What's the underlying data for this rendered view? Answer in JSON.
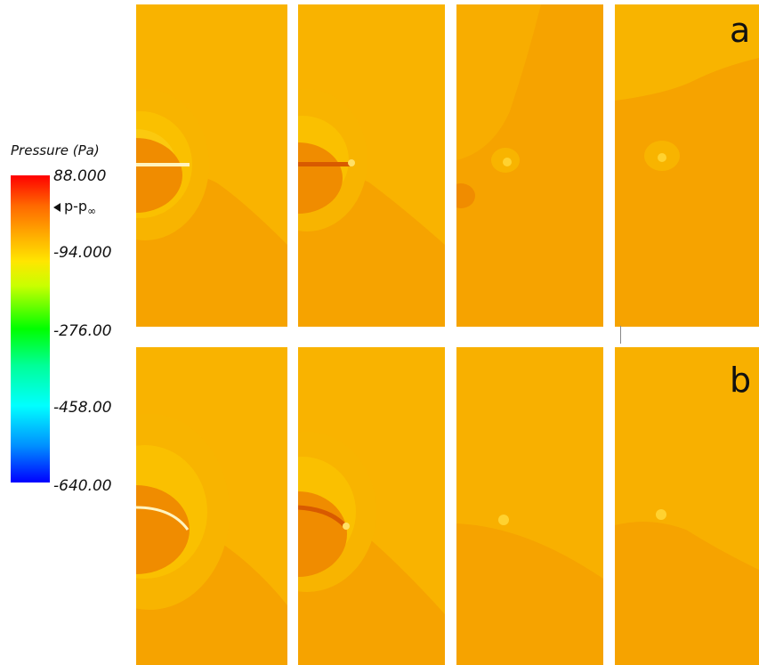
{
  "colorbar": {
    "title": "Pressure (Pa)",
    "marker_label": "p-p",
    "marker_subscript": "∞",
    "ticks": [
      "88.000",
      "-94.000",
      "-276.00",
      "-458.00",
      "-640.00"
    ]
  },
  "rows": [
    {
      "label": "a"
    },
    {
      "label": "b"
    }
  ],
  "colors": {
    "background_field": "#f6a300",
    "upper_field": "#f9b100",
    "surface_highlight": "#ffe066",
    "lower_field": "#f19100"
  }
}
